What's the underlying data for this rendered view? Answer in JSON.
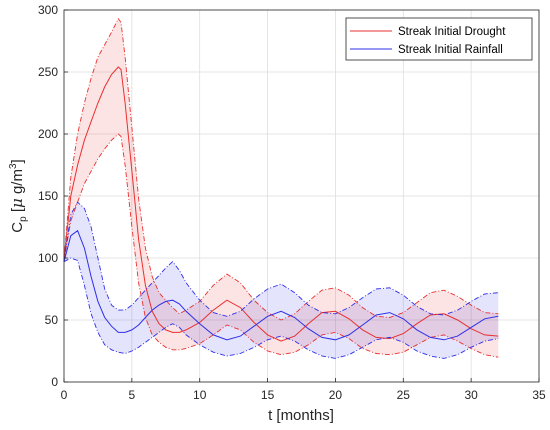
{
  "chart_data": {
    "type": "line",
    "xlabel": "t [months]",
    "ylabel": "C",
    "ylabel_sub": "p",
    "ylabel_unit_prefix": " [",
    "ylabel_unit_mu": "μ",
    "ylabel_unit_rest": " g/m",
    "ylabel_unit_sup": "3",
    "ylabel_unit_close": "]",
    "xlim": [
      0,
      35
    ],
    "ylim": [
      0,
      300
    ],
    "xticks": [
      0,
      5,
      10,
      15,
      20,
      25,
      30,
      35
    ],
    "yticks": [
      0,
      50,
      100,
      150,
      200,
      250,
      300
    ],
    "grid": true,
    "legend_position": "top-right",
    "colors": {
      "drought": "#e8302f",
      "rainfall": "#2f2fe8"
    },
    "series": [
      {
        "name": "Streak Initial Drought",
        "color": "#e8302f",
        "x": [
          0,
          0.5,
          1,
          1.5,
          2,
          2.5,
          3,
          3.5,
          4,
          4.2,
          4.5,
          5,
          5.5,
          6,
          6.5,
          7,
          7.5,
          8,
          8.5,
          9,
          10,
          11,
          12,
          13,
          14,
          15,
          16,
          17,
          18,
          19,
          20,
          21,
          22,
          23,
          24,
          25,
          26,
          27,
          28,
          29,
          30,
          31,
          32
        ],
        "mean": [
          98,
          150,
          175,
          195,
          210,
          225,
          238,
          248,
          254,
          252,
          225,
          170,
          115,
          78,
          57,
          47,
          42,
          40,
          40,
          42,
          48,
          58,
          66,
          60,
          48,
          38,
          33,
          37,
          47,
          56,
          57,
          51,
          42,
          36,
          35,
          39,
          47,
          54,
          55,
          50,
          43,
          38,
          37
        ],
        "upper": [
          98,
          165,
          200,
          225,
          245,
          262,
          272,
          282,
          293,
          290,
          262,
          205,
          148,
          108,
          85,
          72,
          66,
          60,
          55,
          58,
          65,
          78,
          87,
          80,
          66,
          56,
          50,
          55,
          65,
          74,
          76,
          70,
          60,
          53,
          52,
          56,
          64,
          72,
          74,
          69,
          62,
          56,
          55
        ],
        "lower": [
          98,
          130,
          145,
          160,
          170,
          180,
          188,
          195,
          200,
          198,
          175,
          125,
          80,
          52,
          38,
          32,
          28,
          26,
          26,
          27,
          31,
          38,
          46,
          42,
          32,
          25,
          22,
          24,
          30,
          38,
          40,
          35,
          27,
          23,
          22,
          24,
          30,
          36,
          38,
          33,
          27,
          22,
          20
        ]
      },
      {
        "name": "Streak Initial Rainfall",
        "color": "#2f2fe8",
        "x": [
          0,
          0.5,
          1,
          1.5,
          2,
          2.5,
          3,
          3.5,
          4,
          4.5,
          5,
          5.5,
          6,
          6.5,
          7,
          7.5,
          8,
          8.5,
          9,
          10,
          11,
          12,
          13,
          14,
          15,
          16,
          17,
          18,
          19,
          20,
          21,
          22,
          23,
          24,
          25,
          26,
          27,
          28,
          29,
          30,
          31,
          32
        ],
        "mean": [
          97,
          118,
          122,
          108,
          85,
          65,
          52,
          45,
          40,
          40,
          42,
          46,
          52,
          58,
          62,
          65,
          66,
          63,
          57,
          47,
          38,
          34,
          37,
          45,
          53,
          57,
          52,
          43,
          36,
          34,
          38,
          46,
          54,
          56,
          51,
          42,
          36,
          34,
          37,
          44,
          51,
          53
        ],
        "upper": [
          97,
          135,
          145,
          140,
          125,
          100,
          75,
          62,
          58,
          58,
          62,
          68,
          74,
          80,
          86,
          92,
          97,
          90,
          80,
          66,
          56,
          53,
          57,
          67,
          75,
          79,
          72,
          62,
          56,
          55,
          60,
          68,
          75,
          76,
          70,
          61,
          55,
          54,
          58,
          65,
          71,
          72
        ],
        "lower": [
          97,
          100,
          98,
          78,
          55,
          40,
          30,
          26,
          24,
          23,
          25,
          28,
          32,
          36,
          40,
          44,
          47,
          44,
          38,
          30,
          24,
          21,
          23,
          28,
          34,
          37,
          33,
          26,
          21,
          19,
          22,
          28,
          34,
          36,
          32,
          25,
          21,
          19,
          22,
          28,
          33,
          35
        ]
      }
    ]
  }
}
